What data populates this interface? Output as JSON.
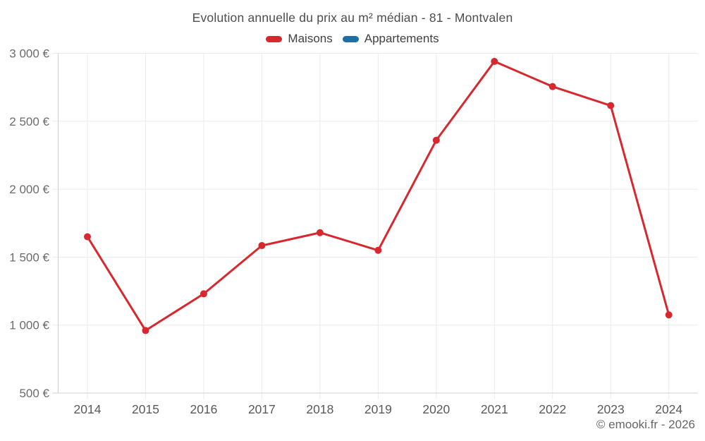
{
  "chart": {
    "title": "Evolution annuelle du prix au m² médian - 81 - Montvalen"
  },
  "legend": {
    "items": [
      {
        "label": "Maisons",
        "color": "#d7282f"
      },
      {
        "label": "Appartements",
        "color": "#1d6fa5"
      }
    ]
  },
  "footer": {
    "copyright": "© emooki.fr - 2026"
  },
  "chart_data": {
    "type": "line",
    "title": "Evolution annuelle du prix au m² médian - 81 - Montvalen",
    "x": [
      2014,
      2015,
      2016,
      2017,
      2018,
      2019,
      2020,
      2021,
      2022,
      2023,
      2024
    ],
    "series": [
      {
        "name": "Maisons",
        "color": "#d7282f",
        "values": [
          1650,
          960,
          1230,
          1585,
          1680,
          1550,
          2360,
          2940,
          2755,
          2615,
          1075
        ]
      },
      {
        "name": "Appartements",
        "color": "#1d6fa5",
        "values": []
      }
    ],
    "xlabel": "",
    "ylabel": "",
    "ylim": [
      500,
      3000
    ],
    "y_ticks": [
      {
        "value": 500,
        "label": "500 €"
      },
      {
        "value": 1000,
        "label": "1 000 €"
      },
      {
        "value": 1500,
        "label": "1 500 €"
      },
      {
        "value": 2000,
        "label": "2 000 €"
      },
      {
        "value": 2500,
        "label": "2 500 €"
      },
      {
        "value": 3000,
        "label": "3 000 €"
      }
    ],
    "grid": true,
    "legend_position": "top",
    "marker_radius": 5,
    "line_width": 3,
    "grid_color": "#ebebeb",
    "axis_color": "#d2d2d2",
    "tick_label_color": "#6b6b6b",
    "x_label_color": "#595959"
  }
}
